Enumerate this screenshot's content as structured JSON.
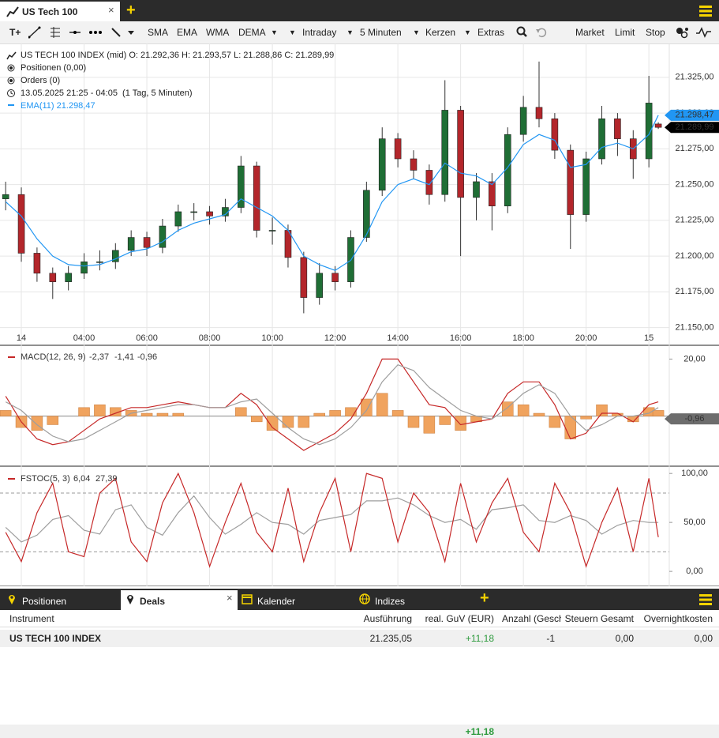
{
  "ui": {
    "tab": "US Tech 100",
    "toolbar": {
      "text_tool": "T+",
      "indicators": [
        "SMA",
        "EMA",
        "WMA",
        "DEMA"
      ],
      "dropdowns": [
        "Intraday",
        "5 Minuten",
        "Kerzen",
        "Extras"
      ],
      "orders": [
        "Market",
        "Limit",
        "Stop"
      ]
    },
    "info": {
      "instrument": "US TECH 100 INDEX (mid)",
      "ohlc": [
        "O: 21.292,36",
        "H: 21.293,57",
        "L: 21.288,86",
        "C: 21.289,99"
      ],
      "positions": "Positionen (0,00)",
      "orders": "Orders (0)",
      "range": "13.05.2025 21:25 - 04:05  (1 Tag, 5 Minuten)",
      "ema_name": "EMA(11)",
      "ema_value": "21.298,47"
    },
    "bottom_tabs": [
      "Positionen",
      "Deals",
      "Kalender",
      "Indizes"
    ],
    "table": {
      "columns": [
        "Instrument",
        "Ausführung",
        "real. GuV (EUR)",
        "Anzahl (Geschl",
        "Steuern Gesamt",
        "Overnightkosten"
      ],
      "rows": [
        [
          "US TECH 100 INDEX",
          "21.235,05",
          "+11,18",
          "-1",
          "0,00",
          "0,00"
        ]
      ],
      "total": "+11,18"
    }
  },
  "chart_data": [
    {
      "type": "candlestick",
      "x": [
        1.5,
        2,
        2.5,
        3,
        3.5,
        4,
        4.5,
        5,
        5.5,
        6,
        6.5,
        7,
        7.5,
        8,
        8.5,
        9,
        9.5,
        10,
        10.5,
        11,
        11.5,
        12,
        12.5,
        13,
        13.5,
        14,
        14.5,
        15,
        15.5,
        16,
        16.5,
        17,
        17.5,
        18,
        18.5,
        19,
        19.5,
        20,
        20.5,
        21,
        21.5,
        22,
        22.3
      ],
      "open": [
        21240,
        21243,
        21202,
        21188,
        21182,
        21188,
        21196,
        21196,
        21204,
        21213,
        21206,
        21221,
        21231,
        21231,
        21228,
        21234,
        21263,
        21218,
        21218,
        21199,
        21171,
        21188,
        21182,
        21213,
        21246,
        21282,
        21268,
        21260,
        21243,
        21302,
        21241,
        21252,
        21235,
        21285,
        21304,
        21296,
        21274,
        21229,
        21268,
        21296,
        21282,
        21268,
        21292.36
      ],
      "high": [
        21252,
        21248,
        21206,
        21192,
        21193,
        21202,
        21204,
        21209,
        21218,
        21217,
        21226,
        21236,
        21237,
        21235,
        21240,
        21270,
        21266,
        21227,
        21222,
        21203,
        21195,
        21193,
        21218,
        21252,
        21290,
        21286,
        21274,
        21264,
        21323,
        21305,
        21258,
        21258,
        21290,
        21312,
        21336,
        21300,
        21278,
        21273,
        21305,
        21300,
        21288,
        21326,
        21293.57
      ],
      "low": [
        21232,
        21196,
        21182,
        21170,
        21176,
        21184,
        21190,
        21191,
        21200,
        21200,
        21202,
        21217,
        21225,
        21222,
        21224,
        21230,
        21213,
        21208,
        21192,
        21160,
        21166,
        21176,
        21178,
        21210,
        21242,
        21262,
        21254,
        21236,
        21238,
        21200,
        21225,
        21218,
        21230,
        21280,
        21290,
        21268,
        21205,
        21224,
        21264,
        21270,
        21254,
        21262,
        21288.86
      ],
      "close": [
        21243,
        21202,
        21188,
        21182,
        21188,
        21196,
        21196,
        21204,
        21213,
        21206,
        21221,
        21231,
        21231,
        21228,
        21234,
        21263,
        21218,
        21218,
        21199,
        21171,
        21188,
        21182,
        21213,
        21246,
        21282,
        21268,
        21260,
        21243,
        21302,
        21241,
        21252,
        21235,
        21285,
        21304,
        21296,
        21274,
        21229,
        21268,
        21296,
        21282,
        21268,
        21307,
        21289.99
      ],
      "up_color": "#1f6e35",
      "down_color": "#b3262b",
      "ema": {
        "color": "#2196f3",
        "values": [
          21238,
          21228,
          21212,
          21200,
          21194,
          21193,
          21194,
          21198,
          21203,
          21205,
          21210,
          21218,
          21223,
          21226,
          21229,
          21240,
          21234,
          21228,
          21218,
          21200,
          21194,
          21190,
          21197,
          21215,
          21238,
          21250,
          21254,
          21250,
          21265,
          21258,
          21256,
          21250,
          21262,
          21278,
          21285,
          21281,
          21262,
          21264,
          21276,
          21279,
          21275,
          21285,
          21298.47
        ]
      },
      "xlim": [
        1.32,
        22.65
      ],
      "xticks": [
        {
          "value": 2,
          "label": "14"
        },
        {
          "value": 4,
          "label": "04:00"
        },
        {
          "value": 6,
          "label": "06:00"
        },
        {
          "value": 8,
          "label": "08:00"
        },
        {
          "value": 10,
          "label": "10:00"
        },
        {
          "value": 12,
          "label": "12:00"
        },
        {
          "value": 14,
          "label": "14:00"
        },
        {
          "value": 16,
          "label": "16:00"
        },
        {
          "value": 18,
          "label": "18:00"
        },
        {
          "value": 20,
          "label": "20:00"
        },
        {
          "value": 22,
          "label": "15"
        }
      ],
      "ylim": [
        21147,
        21347
      ],
      "yticks": [
        {
          "value": 21150,
          "label": "21.150,00"
        },
        {
          "value": 21175,
          "label": "21.175,00"
        },
        {
          "value": 21200,
          "label": "21.200,00"
        },
        {
          "value": 21225,
          "label": "21.225,00"
        },
        {
          "value": 21250,
          "label": "21.250,00"
        },
        {
          "value": 21275,
          "label": "21.275,00"
        },
        {
          "value": 21300,
          "label": "21.300,00"
        },
        {
          "value": 21325,
          "label": "21.325,00"
        }
      ],
      "markers": [
        {
          "value": 21298.47,
          "label": "21.298,47",
          "color": "#2196f3"
        },
        {
          "value": 21289.99,
          "label": "21.289,99",
          "color": "#000000"
        }
      ],
      "grid": true
    },
    {
      "type": "macd",
      "title": "MACD(12, 26, 9)",
      "legend_values": [
        "-2,37",
        "-1,41",
        "-0,96"
      ],
      "series": [
        {
          "color": "#c62828",
          "values": [
            7,
            -2,
            -8,
            -10,
            -9,
            -5,
            -1,
            1,
            3,
            3,
            4,
            5,
            4,
            3,
            3,
            8,
            4,
            -4,
            -8,
            -12,
            -9,
            -6,
            -1,
            8,
            20,
            20,
            12,
            4,
            3,
            -3,
            -2,
            -1,
            8,
            12,
            12,
            4,
            -8,
            -6,
            1,
            1,
            -2,
            4,
            5
          ]
        },
        {
          "color": "#9e9e9e",
          "values": [
            5,
            2,
            -3,
            -7,
            -9,
            -8,
            -5,
            -2,
            1,
            2,
            3,
            4,
            4,
            3,
            3,
            5,
            6,
            1,
            -4,
            -8,
            -10,
            -8,
            -4,
            2,
            12,
            18,
            16,
            10,
            6,
            2,
            0,
            -1,
            3,
            8,
            11,
            8,
            0,
            -5,
            -3,
            0,
            0,
            1,
            3
          ]
        }
      ],
      "histogram": {
        "color": "#f0a35e",
        "values": [
          2,
          -4,
          -5,
          -3,
          0,
          3,
          4,
          3,
          2,
          1,
          1,
          1,
          0,
          0,
          0,
          3,
          -2,
          -5,
          -4,
          -4,
          1,
          2,
          3,
          6,
          8,
          2,
          -4,
          -6,
          -3,
          -5,
          -2,
          0,
          5,
          4,
          1,
          -4,
          -8,
          -1,
          4,
          1,
          -2,
          3,
          2
        ]
      },
      "ylim": [
        -17,
        24
      ],
      "yticks": [
        {
          "value": 20,
          "label": "20,00"
        }
      ],
      "markers": [
        {
          "value": -0.96,
          "label": "-0,96",
          "color": "#6d6d6d"
        }
      ]
    },
    {
      "type": "line",
      "title": "FSTOC(5, 3)",
      "legend_values": [
        "6,04",
        "27,39"
      ],
      "series": [
        {
          "color": "#c62828",
          "values": [
            40,
            10,
            60,
            90,
            20,
            15,
            80,
            95,
            30,
            10,
            70,
            100,
            60,
            5,
            50,
            90,
            40,
            20,
            85,
            10,
            60,
            95,
            20,
            100,
            95,
            30,
            80,
            60,
            10,
            90,
            30,
            70,
            95,
            40,
            20,
            90,
            60,
            5,
            50,
            85,
            20,
            95,
            35
          ]
        },
        {
          "color": "#9e9e9e",
          "values": [
            45,
            30,
            37,
            53,
            57,
            42,
            38,
            63,
            68,
            45,
            37,
            60,
            77,
            55,
            38,
            48,
            60,
            50,
            48,
            38,
            52,
            55,
            58,
            72,
            72,
            75,
            68,
            57,
            50,
            53,
            43,
            63,
            65,
            68,
            52,
            50,
            57,
            52,
            38,
            47,
            52,
            50,
            50
          ]
        }
      ],
      "bands": [
        20,
        80
      ],
      "ylim": [
        -12,
        105
      ],
      "yticks": [
        {
          "value": 0,
          "label": "0,00"
        },
        {
          "value": 50,
          "label": "50,00"
        },
        {
          "value": 100,
          "label": "100,00"
        }
      ]
    }
  ]
}
